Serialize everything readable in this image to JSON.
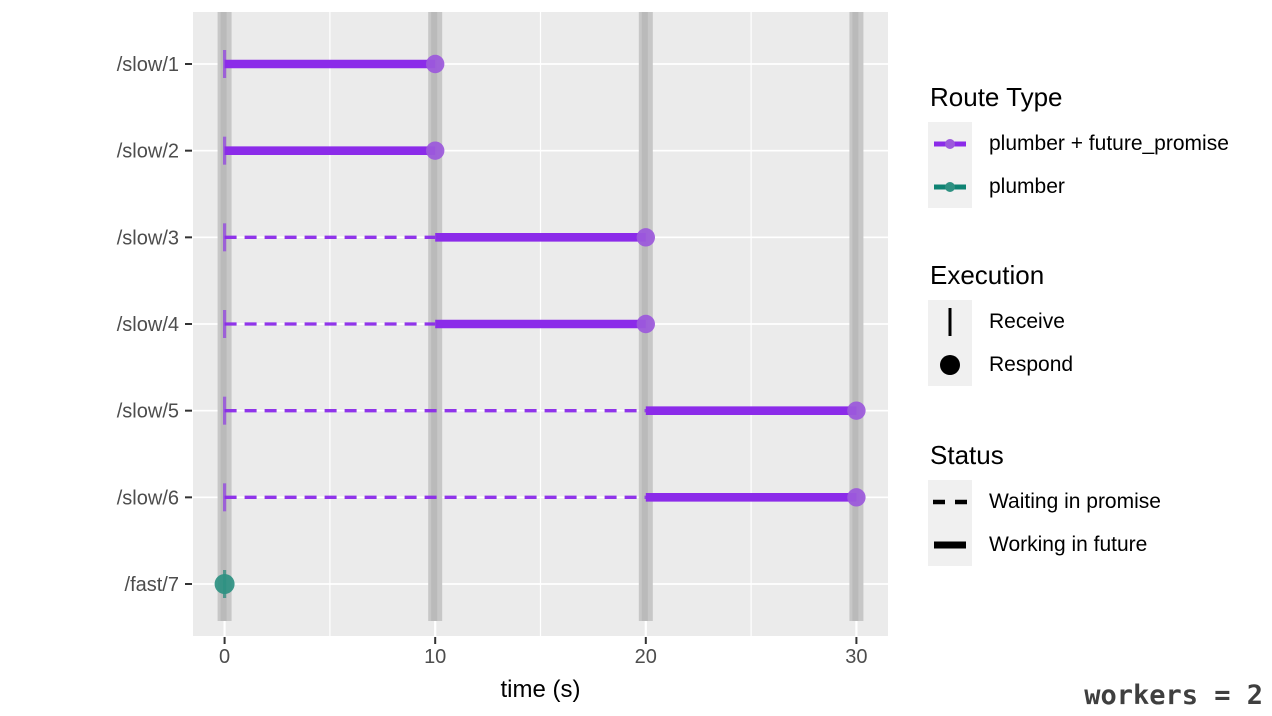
{
  "chart_data": {
    "type": "gantt",
    "title": "",
    "xlabel": "time (s)",
    "x_ticks": [
      0,
      10,
      20,
      30
    ],
    "x_minor_gridlines": [
      5,
      15,
      25
    ],
    "xlim": [
      -1.5,
      31.5
    ],
    "categories": [
      "/slow/1",
      "/slow/2",
      "/slow/3",
      "/slow/4",
      "/slow/5",
      "/slow/6",
      "/fast/7"
    ],
    "worker_bands_at": [
      0,
      10,
      20,
      30
    ],
    "routes": [
      {
        "route": "/slow/1",
        "route_type": "plumber + future_promise",
        "receive": 0,
        "waiting": null,
        "working": [
          0,
          10
        ],
        "respond": 10
      },
      {
        "route": "/slow/2",
        "route_type": "plumber + future_promise",
        "receive": 0,
        "waiting": null,
        "working": [
          0,
          10
        ],
        "respond": 10
      },
      {
        "route": "/slow/3",
        "route_type": "plumber + future_promise",
        "receive": 0,
        "waiting": [
          0,
          10
        ],
        "working": [
          10,
          20
        ],
        "respond": 20
      },
      {
        "route": "/slow/4",
        "route_type": "plumber + future_promise",
        "receive": 0,
        "waiting": [
          0,
          10
        ],
        "working": [
          10,
          20
        ],
        "respond": 20
      },
      {
        "route": "/slow/5",
        "route_type": "plumber + future_promise",
        "receive": 0,
        "waiting": [
          0,
          20
        ],
        "working": [
          20,
          30
        ],
        "respond": 30
      },
      {
        "route": "/slow/6",
        "route_type": "plumber + future_promise",
        "receive": 0,
        "waiting": [
          0,
          20
        ],
        "working": [
          20,
          30
        ],
        "respond": 30
      },
      {
        "route": "/fast/7",
        "route_type": "plumber",
        "receive": 0,
        "waiting": null,
        "working": null,
        "respond": 0
      }
    ],
    "colors": {
      "future_promise": "#8B2BE9",
      "future_promise_point": "#9C59DC",
      "plumber": "#0F8373",
      "plumber_point": "#2E9182",
      "panel_bg": "#EBEBEB",
      "band_outer": "#C7C7C7",
      "band_inner": "#BABABA",
      "gridline": "#FFFFFF",
      "axis_text": "#4D4D4D",
      "tick": "#333333"
    }
  },
  "legend": {
    "route_type": {
      "title": "Route Type",
      "items": [
        {
          "label": "plumber + future_promise",
          "color": "#8B2BE9",
          "point_color": "#9C59DC"
        },
        {
          "label": "plumber",
          "color": "#0F8373",
          "point_color": "#2E9182"
        }
      ]
    },
    "execution": {
      "title": "Execution",
      "items": [
        {
          "label": "Receive",
          "symbol": "vertical-line"
        },
        {
          "label": "Respond",
          "symbol": "filled-circle"
        }
      ]
    },
    "status": {
      "title": "Status",
      "items": [
        {
          "label": "Waiting in promise",
          "symbol": "dashed-line"
        },
        {
          "label": "Working in future",
          "symbol": "solid-line"
        }
      ]
    }
  },
  "caption": {
    "text": "workers = 2",
    "color": "#3F3F3F"
  }
}
